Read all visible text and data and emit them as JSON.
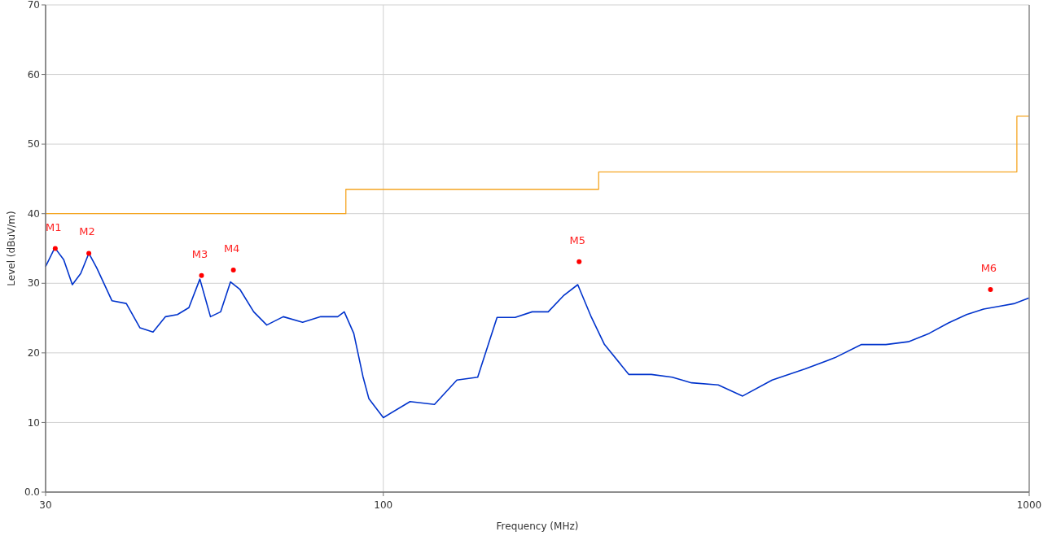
{
  "chart_data": {
    "type": "line",
    "xlabel": "Frequency (MHz)",
    "ylabel": "Level (dBuV/m)",
    "log": "x",
    "xlim": [
      30,
      1000
    ],
    "xticks": [
      30,
      100,
      1000
    ],
    "ylim": [
      0,
      70
    ],
    "yticks": [
      {
        "value": 0,
        "label": "0.0"
      },
      10,
      20,
      30,
      40,
      50,
      60,
      70
    ],
    "grid": true,
    "series": [
      {
        "color": "#0033cc",
        "x": [
          30,
          31,
          32,
          33,
          34,
          35,
          36,
          38,
          40,
          42,
          44,
          46,
          48,
          50,
          52,
          54,
          56,
          58,
          60,
          63,
          66,
          70,
          75,
          80,
          85,
          87,
          90,
          93,
          95,
          100,
          110,
          120,
          130,
          140,
          150,
          160,
          170,
          180,
          190,
          200,
          210,
          220,
          240,
          260,
          280,
          290,
          300,
          330,
          360,
          400,
          450,
          500,
          550,
          600,
          650,
          700,
          750,
          800,
          850,
          900,
          950,
          1000
        ],
        "values": [
          32.4,
          35.1,
          33.4,
          29.8,
          31.4,
          34.3,
          32.2,
          27.5,
          27.1,
          23.6,
          23.0,
          25.2,
          25.5,
          26.5,
          30.6,
          25.2,
          25.9,
          30.2,
          29.1,
          25.9,
          24.0,
          25.2,
          24.4,
          25.2,
          25.2,
          25.9,
          22.8,
          16.6,
          13.4,
          10.7,
          13.0,
          12.6,
          16.1,
          16.5,
          25.1,
          25.1,
          25.9,
          25.9,
          28.2,
          29.8,
          25.1,
          21.2,
          16.9,
          16.9,
          16.5,
          16.1,
          15.7,
          15.4,
          13.8,
          16.1,
          17.7,
          19.3,
          21.2,
          21.2,
          21.6,
          22.8,
          24.3,
          25.5,
          26.3,
          26.7,
          27.1,
          27.9
        ]
      },
      {
        "type": "step",
        "color": "#f5a623",
        "x": [
          30,
          87.5,
          215.5,
          957,
          1000
        ],
        "values": [
          40,
          43.5,
          46,
          54,
          54
        ]
      },
      {
        "type": "scatter",
        "color": "#ff0000",
        "marker": "circle",
        "x": [
          31.05,
          35.0,
          52.3,
          58.6,
          201,
          871
        ],
        "values": [
          35.0,
          34.3,
          31.1,
          31.9,
          33.1,
          29.1
        ]
      }
    ],
    "annotations": [
      {
        "text": "M1",
        "x": 31.05,
        "y": 35.0
      },
      {
        "text": "M2",
        "x": 35.0,
        "y": 34.3
      },
      {
        "text": "M3",
        "x": 52.3,
        "y": 31.1
      },
      {
        "text": "M4",
        "x": 58.6,
        "y": 31.9
      },
      {
        "text": "M5",
        "x": 201,
        "y": 33.1
      },
      {
        "text": "M6",
        "x": 871,
        "y": 29.1
      }
    ]
  }
}
